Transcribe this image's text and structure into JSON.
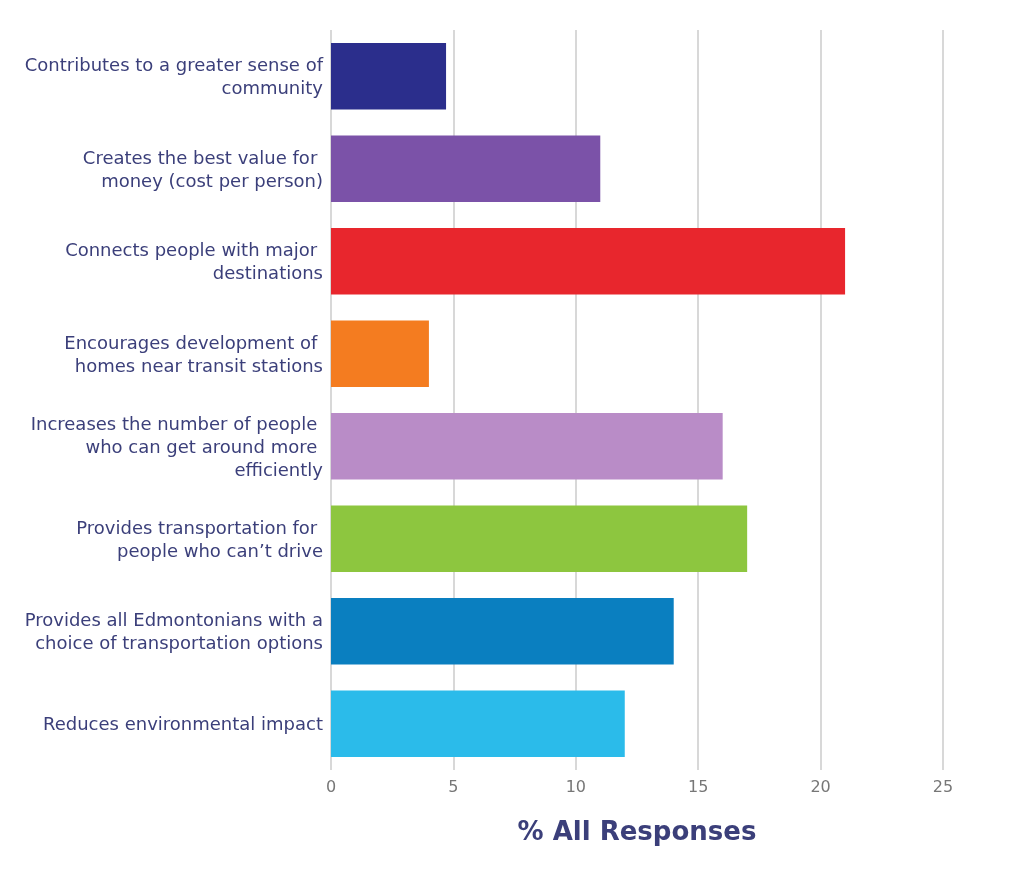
{
  "chart_data": {
    "type": "bar",
    "orientation": "horizontal",
    "xlabel": "% All Responses",
    "categories": [
      "Contributes to a greater sense of community",
      "Creates the best value for money (cost per person)",
      "Connects people with major destinations",
      "Encourages development of homes near transit stations",
      "Increases the number of people who can get around more efficiently",
      "Provides transportation for people who can’t drive",
      "Provides all Edmontonians with a choice of transportation options",
      "Reduces environmental impact"
    ],
    "values": [
      4.7,
      11,
      21,
      4,
      16,
      17,
      14,
      12
    ],
    "colors": [
      "#2b2e8c",
      "#7b52a8",
      "#e8262d",
      "#f47c20",
      "#b98cc7",
      "#8dc63f",
      "#0a7fc0",
      "#2bbbea"
    ],
    "xlim": [
      0,
      25
    ],
    "xticks": [
      0,
      5,
      10,
      15,
      20,
      25
    ],
    "grid": "x"
  }
}
